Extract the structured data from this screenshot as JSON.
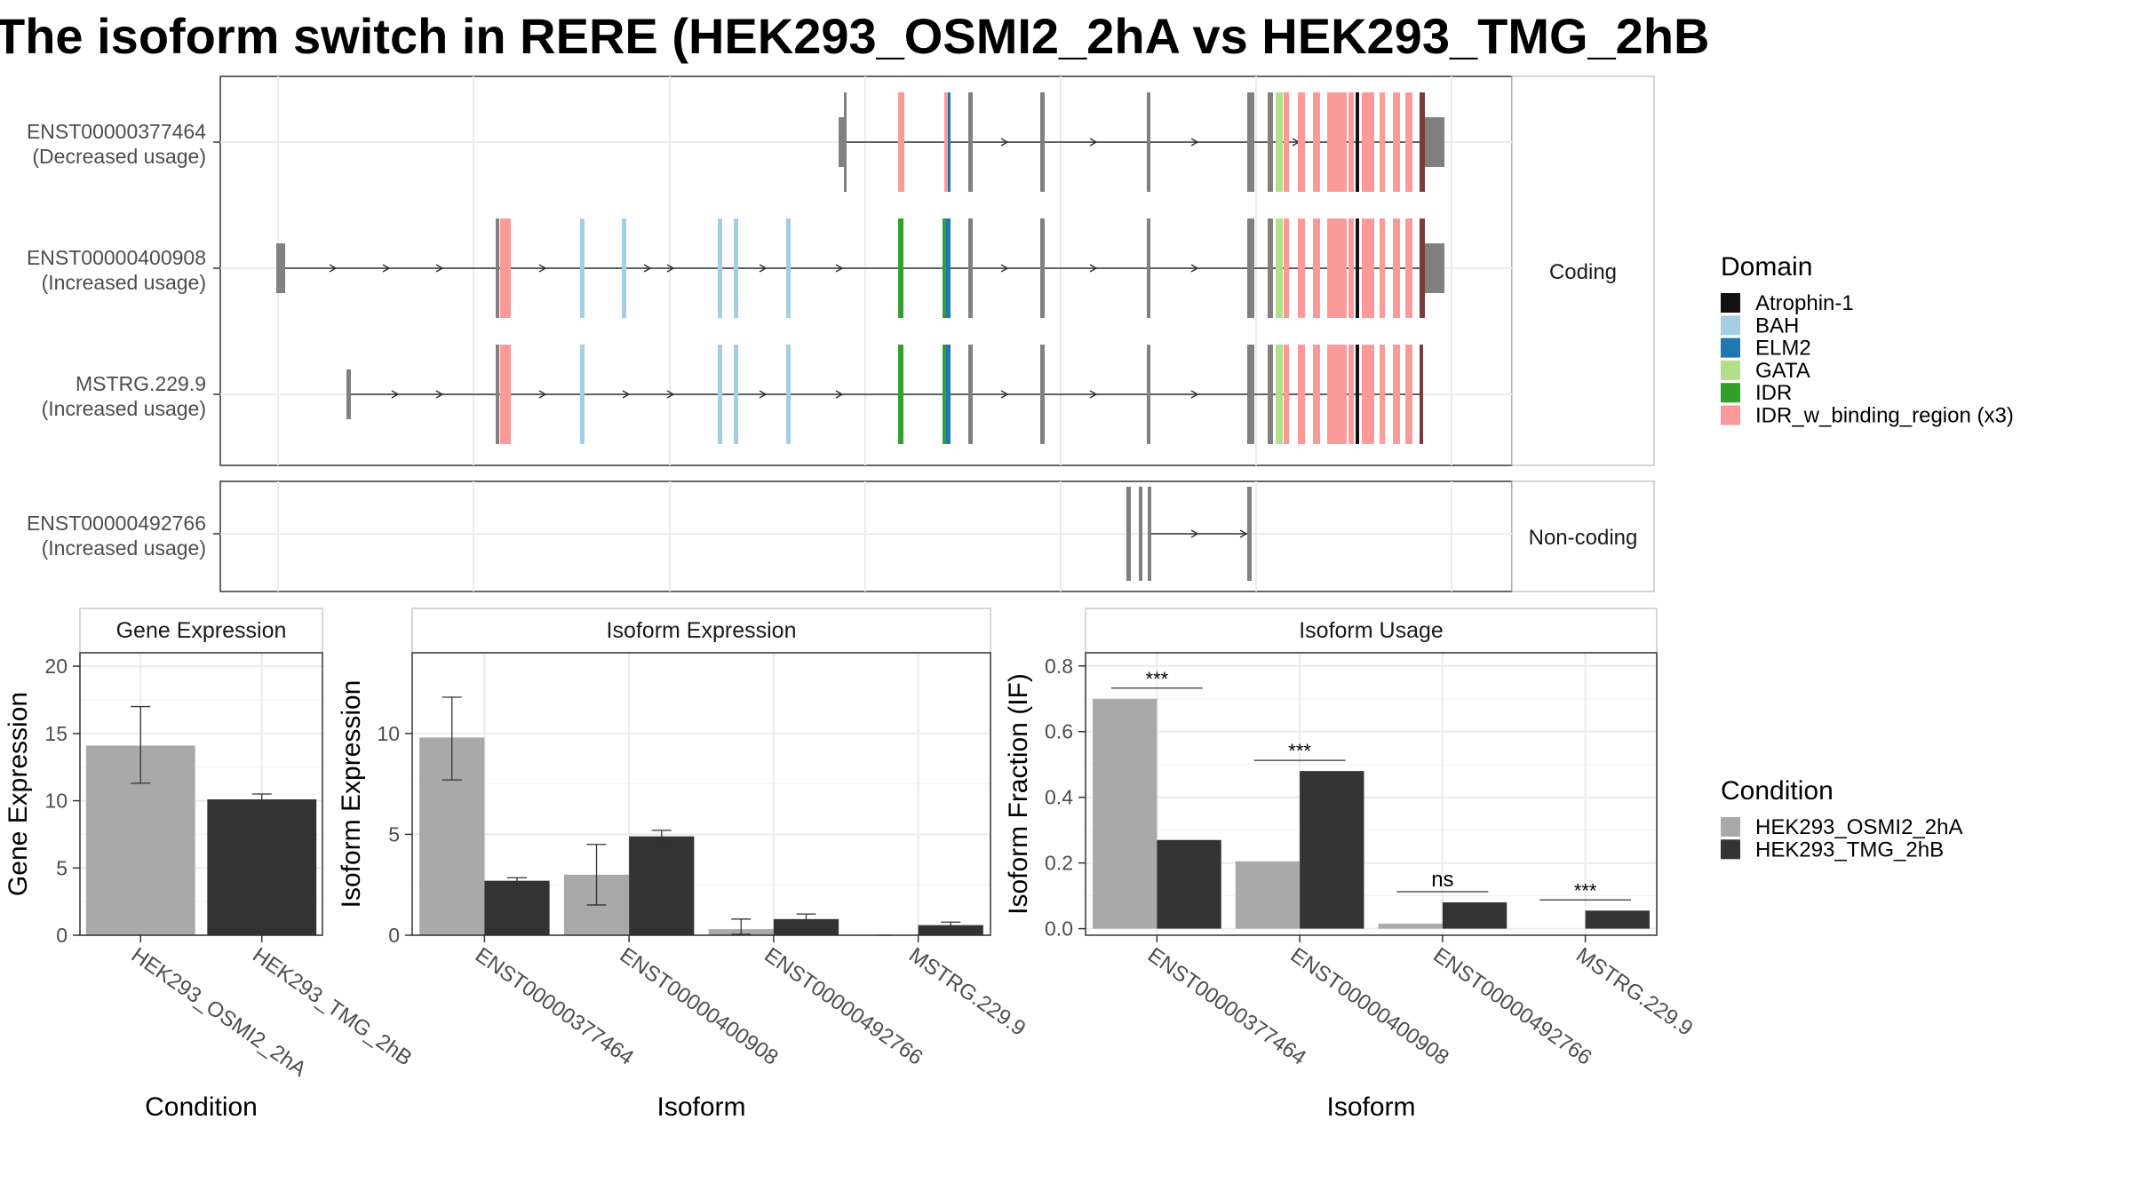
{
  "title": "The isoform switch in RERE (HEK293_OSMI2_2hA vs HEK293_TMG_2hB",
  "transcript_panels": [
    {
      "strip": "Coding",
      "tracks": [
        {
          "id": "ENST00000377464",
          "usage": "(Decreased usage)"
        },
        {
          "id": "ENST00000400908",
          "usage": "(Increased usage)"
        },
        {
          "id": "MSTRG.229.9",
          "usage": "(Increased usage)"
        }
      ]
    },
    {
      "strip": "Non-coding",
      "tracks": [
        {
          "id": "ENST00000492766",
          "usage": "(Increased usage)"
        }
      ]
    }
  ],
  "domain_legend": {
    "title": "Domain",
    "items": [
      {
        "label": "Atrophin-1",
        "color": "#111111"
      },
      {
        "label": "BAH",
        "color": "#a6cee3"
      },
      {
        "label": "ELM2",
        "color": "#1f78b4"
      },
      {
        "label": "GATA",
        "color": "#b2df8a"
      },
      {
        "label": "IDR",
        "color": "#33a02c"
      },
      {
        "label": "IDR_w_binding_region (x3)",
        "color": "#fb9a99"
      }
    ]
  },
  "condition_legend": {
    "title": "Condition",
    "items": [
      {
        "label": "HEK293_OSMI2_2hA",
        "color": "#a9a9a9"
      },
      {
        "label": "HEK293_TMG_2hB",
        "color": "#333333"
      }
    ]
  },
  "chart_data": [
    {
      "type": "bar",
      "title": "Gene Expression",
      "xlabel": "Condition",
      "ylabel": "Gene Expression",
      "categories": [
        "HEK293_OSMI2_2hA",
        "HEK293_TMG_2hB"
      ],
      "values": [
        14.1,
        10.1
      ],
      "error_low": [
        11.3,
        9.7
      ],
      "error_high": [
        17.0,
        10.5
      ],
      "colors": [
        "#a9a9a9",
        "#333333"
      ],
      "ylim": [
        0,
        21
      ],
      "yticks": [
        0,
        5,
        10,
        15,
        20
      ]
    },
    {
      "type": "bar",
      "title": "Isoform Expression",
      "xlabel": "Isoform",
      "ylabel": "Isoform Expression",
      "categories": [
        "ENST00000377464",
        "ENST00000400908",
        "ENST00000492766",
        "MSTRG.229.9"
      ],
      "series": [
        {
          "name": "HEK293_OSMI2_2hA",
          "values": [
            9.8,
            3.0,
            0.3,
            0.0
          ],
          "err_low": [
            7.7,
            1.5,
            0.05,
            0.0
          ],
          "err_high": [
            11.8,
            4.5,
            0.8,
            0.0
          ]
        },
        {
          "name": "HEK293_TMG_2hB",
          "values": [
            2.7,
            4.9,
            0.8,
            0.5
          ],
          "err_low": [
            2.6,
            4.6,
            0.6,
            0.4
          ],
          "err_high": [
            2.85,
            5.2,
            1.05,
            0.65
          ]
        }
      ],
      "ylim": [
        0,
        14
      ],
      "yticks": [
        0,
        5,
        10
      ]
    },
    {
      "type": "bar",
      "title": "Isoform Usage",
      "xlabel": "Isoform",
      "ylabel": "Isoform Fraction (IF)",
      "categories": [
        "ENST00000377464",
        "ENST00000400908",
        "ENST00000492766",
        "MSTRG.229.9"
      ],
      "series": [
        {
          "name": "HEK293_OSMI2_2hA",
          "values": [
            0.7,
            0.205,
            0.015,
            0.0
          ]
        },
        {
          "name": "HEK293_TMG_2hB",
          "values": [
            0.27,
            0.48,
            0.08,
            0.055
          ]
        }
      ],
      "significance": [
        "***",
        "***",
        "ns",
        "***"
      ],
      "ylim": [
        -0.02,
        0.84
      ],
      "yticks": [
        0.0,
        0.2,
        0.4,
        0.6,
        0.8
      ],
      "ytick_labels": [
        "0.0",
        "0.2",
        "0.4",
        "0.6",
        "0.8"
      ]
    }
  ]
}
